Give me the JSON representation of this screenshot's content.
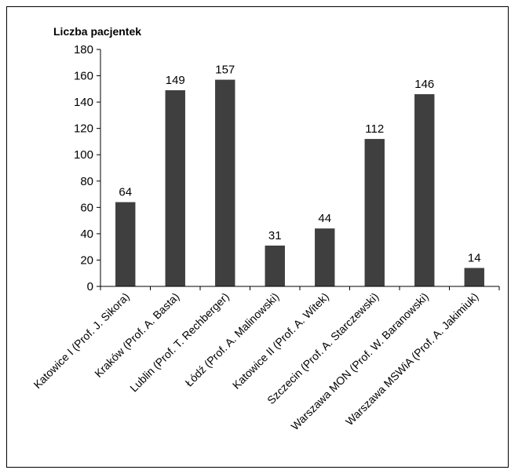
{
  "chart_data": {
    "type": "bar",
    "title": "",
    "xlabel": "",
    "ylabel": "Liczba pacjentek",
    "ylim": [
      0,
      180
    ],
    "yticks": [
      0,
      20,
      40,
      60,
      80,
      100,
      120,
      140,
      160,
      180
    ],
    "grid": false,
    "legend": "none",
    "bar_color": "#3f3f3f",
    "categories": [
      "Katowice I (Prof. J. Sikora)",
      "Kraków (Prof. A. Basta)",
      "Lublin (Prof. T. Rechberger)",
      "Łódź (Prof. A. Malinowski)",
      "Katowice II (Prof. A. Witek)",
      "Szczecin (Prof. A. Starczewski)",
      "Warszawa MON (Prof. W. Baranowski)",
      "Warszawa MSWiA (Prof. A. Jakimiuk)"
    ],
    "values": [
      64,
      149,
      157,
      31,
      44,
      112,
      146,
      14
    ]
  }
}
